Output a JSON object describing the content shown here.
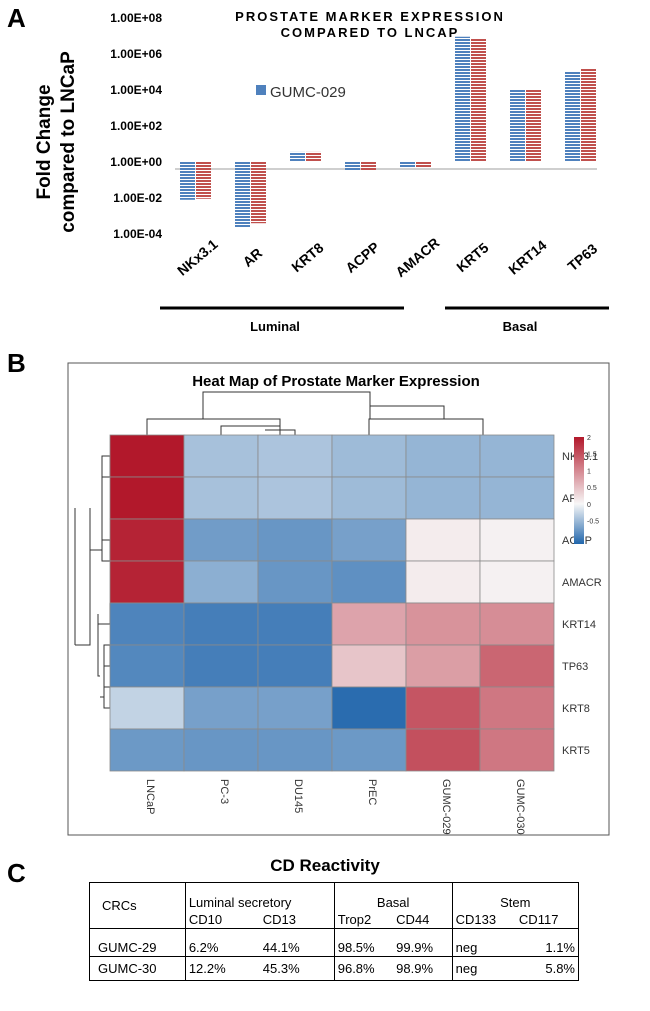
{
  "panels": {
    "a": "A",
    "b": "B",
    "c": "C"
  },
  "chart_data": [
    {
      "type": "bar",
      "title": "PROSTATE MARKER EXPRESSION COMPARED TO LNCAP",
      "title_lines": [
        "PROSTATE MARKER EXPRESSION",
        "COMPARED TO LNCAP"
      ],
      "ylabel_lines": [
        "Fold Change",
        "compared to LNCaP"
      ],
      "yscale": "log",
      "ylim": [
        0.0001,
        100000000
      ],
      "yticks": [
        {
          "value": 100000000,
          "label": "1.00E+08"
        },
        {
          "value": 1000000,
          "label": "1.00E+06"
        },
        {
          "value": 10000,
          "label": "1.00E+04"
        },
        {
          "value": 100,
          "label": "1.00E+02"
        },
        {
          "value": 1,
          "label": "1.00E+00"
        },
        {
          "value": 0.01,
          "label": "1.00E-02"
        },
        {
          "value": 0.0001,
          "label": "1.00E-04"
        }
      ],
      "categories": [
        "NKx3.1",
        "AR",
        "KRT8",
        "ACPP",
        "AMACR",
        "KRT5",
        "KRT14",
        "TP63"
      ],
      "series": [
        {
          "name": "GUMC-029",
          "color": "#4f81bd",
          "values": [
            0.007,
            0.0002,
            3.2,
            0.3,
            0.45,
            8000000,
            10000,
            100000
          ],
          "show_in_legend": true
        },
        {
          "name": "GUMC-030",
          "color": "#c0504d",
          "values": [
            0.008,
            0.00035,
            3.2,
            0.3,
            0.42,
            6000000,
            10000,
            140000
          ],
          "show_in_legend": false
        }
      ],
      "groups": [
        {
          "label": "Luminal",
          "categories": [
            "NKx3.1",
            "AR",
            "KRT8",
            "ACPP",
            "AMACR"
          ]
        },
        {
          "label": "Basal",
          "categories": [
            "KRT5",
            "KRT14",
            "TP63"
          ]
        }
      ]
    },
    {
      "type": "heatmap",
      "title": "Heat Map of Prostate Marker Expression",
      "columns": [
        "LNCaP",
        "PC-3",
        "DU145",
        "PrEC",
        "GUMC-029",
        "GUMC-030"
      ],
      "rows": [
        "NKx3.1",
        "AR",
        "ACPP",
        "AMACR",
        "KRT14",
        "TP63",
        "KRT8",
        "KRT5"
      ],
      "values": [
        [
          2.0,
          -0.45,
          -0.42,
          -0.5,
          -0.55,
          -0.55
        ],
        [
          2.0,
          -0.45,
          -0.42,
          -0.5,
          -0.55,
          -0.55
        ],
        [
          1.9,
          -0.75,
          -0.8,
          -0.72,
          0.1,
          0.05
        ],
        [
          1.9,
          -0.6,
          -0.8,
          -0.85,
          0.1,
          0.05
        ],
        [
          -0.95,
          -1.0,
          -1.0,
          0.75,
          0.9,
          0.95
        ],
        [
          -0.92,
          -1.0,
          -1.0,
          0.45,
          0.8,
          1.3
        ],
        [
          -0.3,
          -0.72,
          -0.72,
          -1.15,
          1.45,
          1.15
        ],
        [
          -0.78,
          -0.8,
          -0.8,
          -0.78,
          1.5,
          1.15
        ]
      ],
      "colorbar": {
        "min": -1.2,
        "max": 2.0,
        "ticks": [
          {
            "value": 2,
            "label": "2"
          },
          {
            "value": 1.5,
            "label": "1.5"
          },
          {
            "value": 1,
            "label": "1"
          },
          {
            "value": 0.5,
            "label": "0.5"
          },
          {
            "value": 0,
            "label": "0"
          },
          {
            "value": -0.5,
            "label": "-0.5"
          }
        ],
        "colors": [
          "#2166ac",
          "#f7f7f7",
          "#b2182b"
        ]
      },
      "dendrogram": "hierarchical clustering of rows and columns"
    }
  ],
  "table": {
    "title": "CD Reactivity",
    "group_headers": {
      "crcs": "CRCs",
      "luminal": "Luminal secretory",
      "basal": "Basal",
      "stem": "Stem"
    },
    "columns": [
      "CD10",
      "CD13",
      "Trop2",
      "CD44",
      "CD133",
      "CD117"
    ],
    "rows": [
      {
        "name": "GUMC-29",
        "cells": [
          "6.2%",
          "44.1%",
          "98.5%",
          "99.9%",
          "neg",
          "1.1%"
        ]
      },
      {
        "name": "GUMC-30",
        "cells": [
          "12.2%",
          "45.3%",
          "96.8%",
          "98.9%",
          "neg",
          "5.8%"
        ]
      }
    ]
  }
}
